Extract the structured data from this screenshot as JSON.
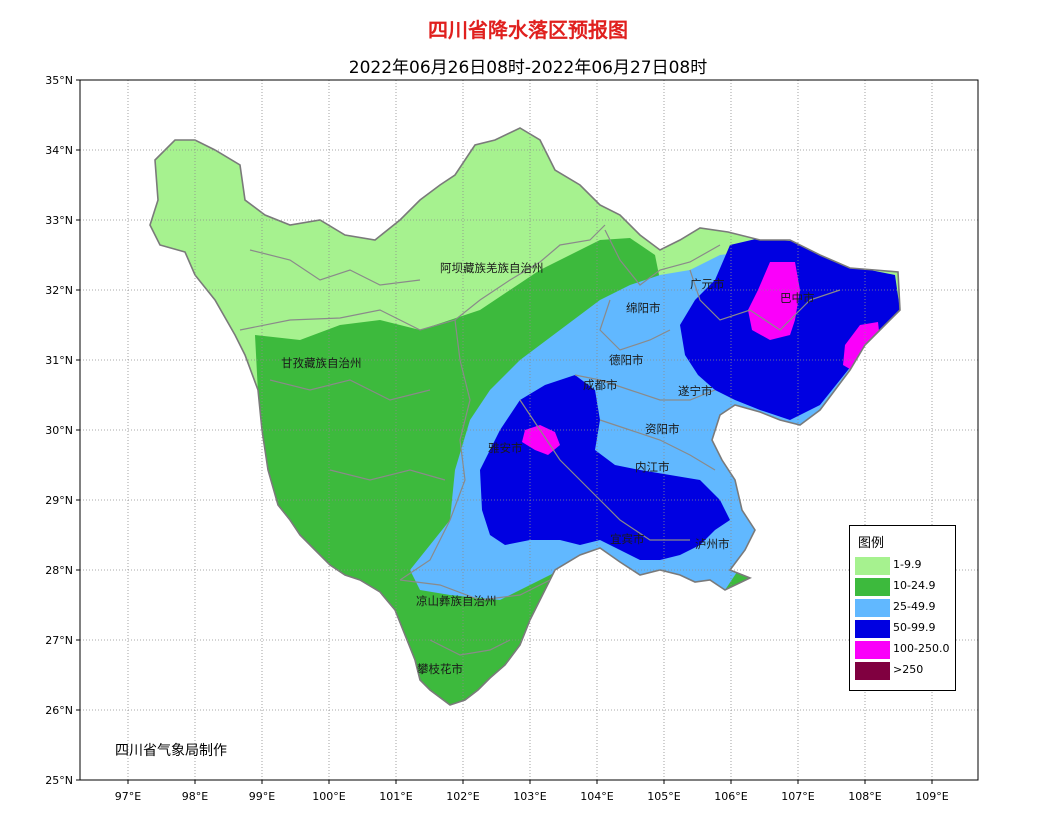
{
  "title": "四川省降水落区预报图",
  "subtitle": "2022年06月26日08时-2022年06月27日08时",
  "credit": "四川省气象局制作",
  "axes": {
    "lat_labels": [
      "35°N",
      "34°N",
      "33°N",
      "32°N",
      "31°N",
      "30°N",
      "29°N",
      "28°N",
      "27°N",
      "26°N",
      "25°N"
    ],
    "lon_labels": [
      "97°E",
      "98°E",
      "99°E",
      "100°E",
      "101°E",
      "102°E",
      "103°E",
      "104°E",
      "105°E",
      "106°E",
      "107°E",
      "108°E",
      "109°E"
    ],
    "lat_range": [
      25,
      35
    ],
    "lon_range": [
      96.3,
      109.7
    ]
  },
  "legend": {
    "title": "图例",
    "items": [
      {
        "label": "1-9.9",
        "color": "#a6f28f"
      },
      {
        "label": "10-24.9",
        "color": "#3dba3d"
      },
      {
        "label": "25-49.9",
        "color": "#61b8ff"
      },
      {
        "label": "50-99.9",
        "color": "#0000e1"
      },
      {
        "label": "100-250.0",
        "color": "#fa00fa"
      },
      {
        "label": ">250",
        "color": "#800040"
      }
    ]
  },
  "regions": [
    {
      "name": "阿坝藏族羌族自治州"
    },
    {
      "name": "甘孜藏族自治州"
    },
    {
      "name": "绵阳市"
    },
    {
      "name": "广元市"
    },
    {
      "name": "巴中市"
    },
    {
      "name": "德阳市"
    },
    {
      "name": "成都市"
    },
    {
      "name": "遂宁市"
    },
    {
      "name": "资阳市"
    },
    {
      "name": "雅安市"
    },
    {
      "name": "内江市"
    },
    {
      "name": "宜宾市"
    },
    {
      "name": "泸州市"
    },
    {
      "name": "凉山彝族自治州"
    },
    {
      "name": "攀枝花市"
    }
  ],
  "colors": {
    "frame": "#000000",
    "gridline": "#8c8c8c",
    "boundary": "#808080",
    "title_red": "#e0201e"
  }
}
